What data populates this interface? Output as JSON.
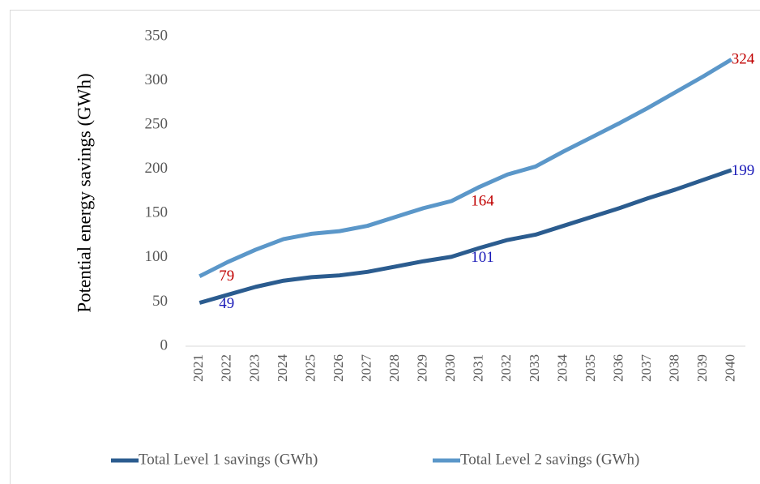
{
  "chart_data": {
    "type": "line",
    "y_label": "Potential energy savings (GWh)",
    "categories": [
      "2021",
      "2022",
      "2023",
      "2024",
      "2025",
      "2026",
      "2027",
      "2028",
      "2029",
      "2030",
      "2031",
      "2032",
      "2033",
      "2034",
      "2035",
      "2036",
      "2037",
      "2038",
      "2039",
      "2040"
    ],
    "ylim": [
      0,
      350
    ],
    "yticks": [
      0,
      50,
      100,
      150,
      200,
      250,
      300,
      350
    ],
    "legend": "bottom",
    "series": [
      {
        "name": "Total Level 1 savings (GWh)",
        "color": "#2b5c8f",
        "label_color": "#1a1ab8",
        "values": [
          49,
          58,
          67,
          74,
          78,
          80,
          84,
          90,
          96,
          101,
          111,
          120,
          126,
          136,
          146,
          156,
          167,
          177,
          188,
          199
        ],
        "value_labels": [
          "49",
          null,
          null,
          null,
          null,
          null,
          null,
          null,
          null,
          "101",
          null,
          null,
          null,
          null,
          null,
          null,
          null,
          null,
          null,
          "199"
        ]
      },
      {
        "name": "Total Level 2 savings (GWh)",
        "color": "#5b97c9",
        "label_color": "#c00000",
        "values": [
          79,
          95,
          109,
          121,
          127,
          130,
          136,
          146,
          156,
          164,
          180,
          194,
          203,
          220,
          236,
          252,
          269,
          287,
          305,
          324
        ],
        "value_labels": [
          "79",
          null,
          null,
          null,
          null,
          null,
          null,
          null,
          null,
          "164",
          null,
          null,
          null,
          null,
          null,
          null,
          null,
          null,
          null,
          "324"
        ]
      }
    ]
  }
}
